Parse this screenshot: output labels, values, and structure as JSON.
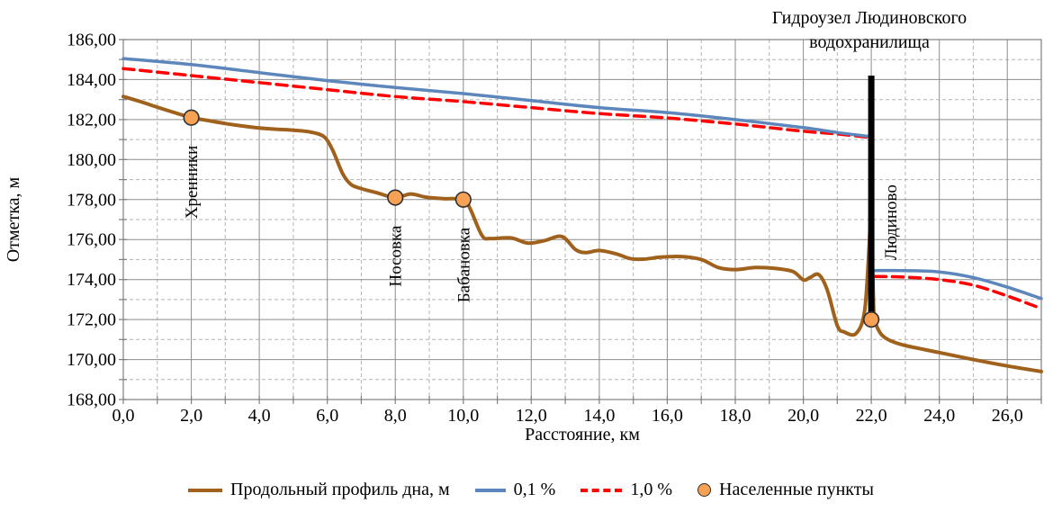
{
  "figure": {
    "background": "#ffffff"
  },
  "axes": {
    "y_title": "Отметка, м",
    "x_title": "Расстояние, км",
    "y_tick_labels": [
      "186,00",
      "184,00",
      "182,00",
      "180,00",
      "178,00",
      "176,00",
      "174,00",
      "172,00",
      "170,00",
      "168,00"
    ],
    "x_tick_labels": [
      "0,0",
      "2,0",
      "4,0",
      "6,0",
      "8,0",
      "10,0",
      "12,0",
      "14,0",
      "16,0",
      "18,0",
      "20,0",
      "22,0",
      "24,0",
      "26,0"
    ]
  },
  "annotation": {
    "line1": "Гидроузел Людиновского",
    "line2": "водохранилища"
  },
  "legend": {
    "items": [
      {
        "label": "Продольный профиль дна, м",
        "swatch": "brown-line"
      },
      {
        "label": "0,1 %",
        "swatch": "blue-line"
      },
      {
        "label": "1,0 %",
        "swatch": "red-dashed"
      },
      {
        "label": "Населенные пункты",
        "swatch": "orange-dot"
      }
    ]
  },
  "colors": {
    "bed_profile": "#A0611C",
    "p01": "#5C86BC",
    "p10": "#FF0000",
    "settlement_fill": "#F7A154",
    "settlement_stroke": "#2F2F2F",
    "dam": "#000000",
    "grid_major": "#8C8C8C",
    "grid_minor": "#B3B3B3",
    "border": "#7F7F7F"
  },
  "chart_data": {
    "type": "line",
    "xlabel": "Расстояние, км",
    "ylabel": "Отметка, м",
    "xlim": [
      0,
      27
    ],
    "ylim": [
      168,
      186
    ],
    "x_major_step": 2,
    "x_minor_step": 1,
    "y_major_step": 2,
    "y_minor_step": 1,
    "grid": "both",
    "legend_position": "bottom",
    "series": [
      {
        "name": "Продольный профиль дна, м",
        "style": "solid",
        "width": 4,
        "color": "#A0611C",
        "smooth": true,
        "segments": [
          [
            [
              0,
              183.15
            ],
            [
              0.5,
              182.9
            ],
            [
              1,
              182.62
            ],
            [
              1.5,
              182.35
            ],
            [
              2,
              182.1
            ],
            [
              2.5,
              181.95
            ],
            [
              3,
              181.8
            ],
            [
              3.5,
              181.68
            ],
            [
              4,
              181.58
            ],
            [
              4.5,
              181.52
            ],
            [
              5,
              181.47
            ],
            [
              5.5,
              181.38
            ],
            [
              5.9,
              181.15
            ],
            [
              6.15,
              180.5
            ],
            [
              6.45,
              179.3
            ],
            [
              6.7,
              178.75
            ],
            [
              7,
              178.55
            ],
            [
              7.5,
              178.32
            ],
            [
              8,
              178.1
            ],
            [
              8.45,
              178.28
            ],
            [
              8.9,
              178.12
            ],
            [
              9.4,
              178.05
            ],
            [
              10,
              178.0
            ],
            [
              10.2,
              177.55
            ],
            [
              10.55,
              176.2
            ],
            [
              10.8,
              176.05
            ],
            [
              11.4,
              176.08
            ],
            [
              11.9,
              175.82
            ],
            [
              12.4,
              175.95
            ],
            [
              12.9,
              176.15
            ],
            [
              13.3,
              175.5
            ],
            [
              13.6,
              175.35
            ],
            [
              14,
              175.45
            ],
            [
              14.5,
              175.28
            ],
            [
              14.9,
              175.05
            ],
            [
              15.3,
              175.02
            ],
            [
              15.8,
              175.12
            ],
            [
              16.4,
              175.15
            ],
            [
              17,
              175.0
            ],
            [
              17.5,
              174.6
            ],
            [
              18,
              174.5
            ],
            [
              18.6,
              174.6
            ],
            [
              19.2,
              174.55
            ],
            [
              19.7,
              174.4
            ],
            [
              20,
              173.98
            ],
            [
              20.2,
              174.1
            ],
            [
              20.45,
              174.25
            ],
            [
              20.7,
              173.5
            ],
            [
              21,
              171.7
            ],
            [
              21.2,
              171.38
            ],
            [
              21.55,
              171.3
            ],
            [
              21.8,
              172.4
            ],
            [
              21.93,
              175.5
            ],
            [
              21.98,
              176.9
            ],
            [
              22.04,
              174.5
            ],
            [
              22.08,
              172.2
            ],
            [
              22.15,
              171.7
            ],
            [
              22.3,
              171.25
            ],
            [
              22.55,
              170.95
            ],
            [
              23,
              170.7
            ],
            [
              24,
              170.35
            ],
            [
              25,
              170.0
            ],
            [
              26,
              169.68
            ],
            [
              27,
              169.4
            ]
          ]
        ]
      },
      {
        "name": "0,1 %",
        "style": "solid",
        "width": 3.5,
        "color": "#5C86BC",
        "smooth": true,
        "segments": [
          [
            [
              0,
              185.05
            ],
            [
              2,
              184.75
            ],
            [
              4,
              184.35
            ],
            [
              6,
              183.95
            ],
            [
              8,
              183.6
            ],
            [
              10,
              183.3
            ],
            [
              12,
              182.95
            ],
            [
              14,
              182.6
            ],
            [
              16,
              182.35
            ],
            [
              18,
              182.0
            ],
            [
              20,
              181.6
            ],
            [
              21,
              181.35
            ],
            [
              22,
              181.15
            ]
          ],
          [
            [
              22.12,
              174.45
            ],
            [
              23,
              174.45
            ],
            [
              24,
              174.38
            ],
            [
              25,
              174.1
            ],
            [
              26,
              173.62
            ],
            [
              27,
              173.05
            ]
          ]
        ]
      },
      {
        "name": "1,0 %",
        "style": "dashed",
        "width": 3.5,
        "color": "#FF0000",
        "smooth": true,
        "segments": [
          [
            [
              0,
              184.55
            ],
            [
              2,
              184.2
            ],
            [
              4,
              183.85
            ],
            [
              6,
              183.5
            ],
            [
              8,
              183.15
            ],
            [
              10,
              182.9
            ],
            [
              12,
              182.6
            ],
            [
              14,
              182.3
            ],
            [
              16,
              182.08
            ],
            [
              18,
              181.78
            ],
            [
              20,
              181.42
            ],
            [
              21,
              181.28
            ],
            [
              22,
              181.1
            ]
          ],
          [
            [
              22.12,
              174.15
            ],
            [
              23,
              174.12
            ],
            [
              24,
              174.0
            ],
            [
              25,
              173.72
            ],
            [
              26,
              173.18
            ],
            [
              27,
              172.55
            ]
          ]
        ]
      }
    ],
    "markers": {
      "name": "Населенные пункты",
      "points": [
        {
          "label": "Хренники",
          "x": 2,
          "y": 182.1,
          "label_pos": "below"
        },
        {
          "label": "Носовка",
          "x": 8,
          "y": 178.1,
          "label_pos": "below"
        },
        {
          "label": "Бабановка",
          "x": 10,
          "y": 178.0,
          "label_pos": "below"
        },
        {
          "label": "Людиново",
          "x": 22,
          "y": 172.0,
          "label_pos": "right"
        }
      ]
    },
    "dam": {
      "x": 22,
      "y_from": 172.1,
      "y_to": 184.2,
      "label_line1": "Гидроузел Людиновского",
      "label_line2": "водохранилища"
    }
  }
}
